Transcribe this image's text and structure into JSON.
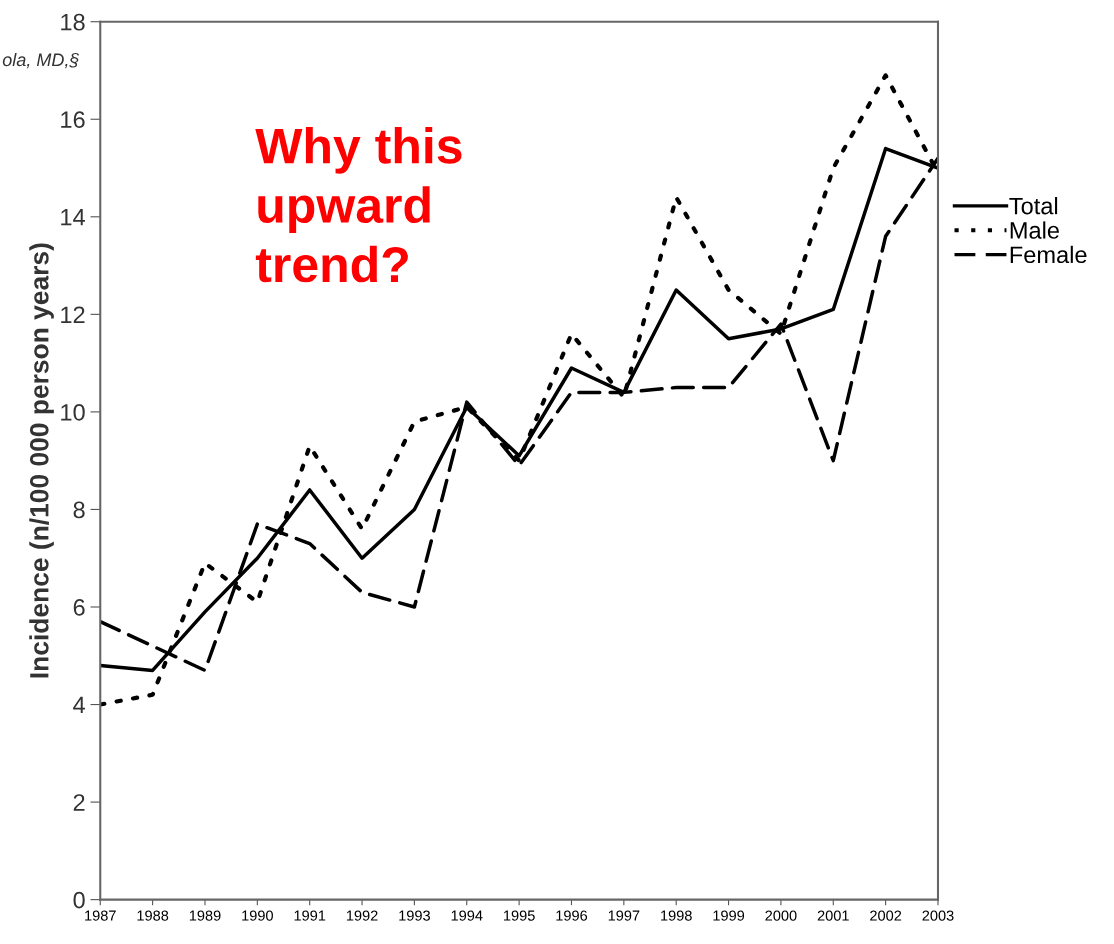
{
  "chart_data": {
    "type": "line",
    "ylabel": "Incidence (n/100 000 person years)",
    "x": [
      1987,
      1988,
      1989,
      1990,
      1991,
      1992,
      1993,
      1994,
      1995,
      1996,
      1997,
      1998,
      1999,
      2000,
      2001,
      2002,
      2003
    ],
    "series": [
      {
        "name": "Total",
        "color": "#000000",
        "line_style": "solid",
        "values": [
          4.8,
          4.7,
          5.9,
          7.0,
          8.4,
          7.0,
          8.0,
          10.1,
          9.1,
          10.9,
          10.4,
          12.5,
          11.5,
          11.7,
          12.1,
          15.4,
          15.0
        ]
      },
      {
        "name": "Male",
        "color": "#000000",
        "line_style": "dotted",
        "values": [
          4.0,
          4.2,
          6.9,
          6.1,
          9.3,
          7.6,
          9.8,
          10.1,
          9.0,
          11.6,
          10.3,
          14.4,
          12.5,
          11.6,
          15.0,
          16.9,
          14.9
        ]
      },
      {
        "name": "Female",
        "color": "#000000",
        "line_style": "dashed",
        "values": [
          5.7,
          5.2,
          4.7,
          7.7,
          7.3,
          6.3,
          6.0,
          10.2,
          8.9,
          10.4,
          10.4,
          10.5,
          10.5,
          11.8,
          9.0,
          13.6,
          15.2
        ]
      }
    ],
    "xlim": [
      1987,
      2003
    ],
    "xticks": [
      1987,
      1988,
      1989,
      1990,
      1991,
      1992,
      1993,
      1994,
      1995,
      1996,
      1997,
      1998,
      1999,
      2000,
      2001,
      2002,
      2003
    ],
    "ylim": [
      0,
      18
    ],
    "yticks": [
      0,
      2,
      4,
      6,
      8,
      10,
      12,
      14,
      16,
      18
    ],
    "grid": false,
    "legend": "right",
    "annotations": [
      "Why this\nupward\ntrend?",
      "ola, MD,§"
    ]
  }
}
